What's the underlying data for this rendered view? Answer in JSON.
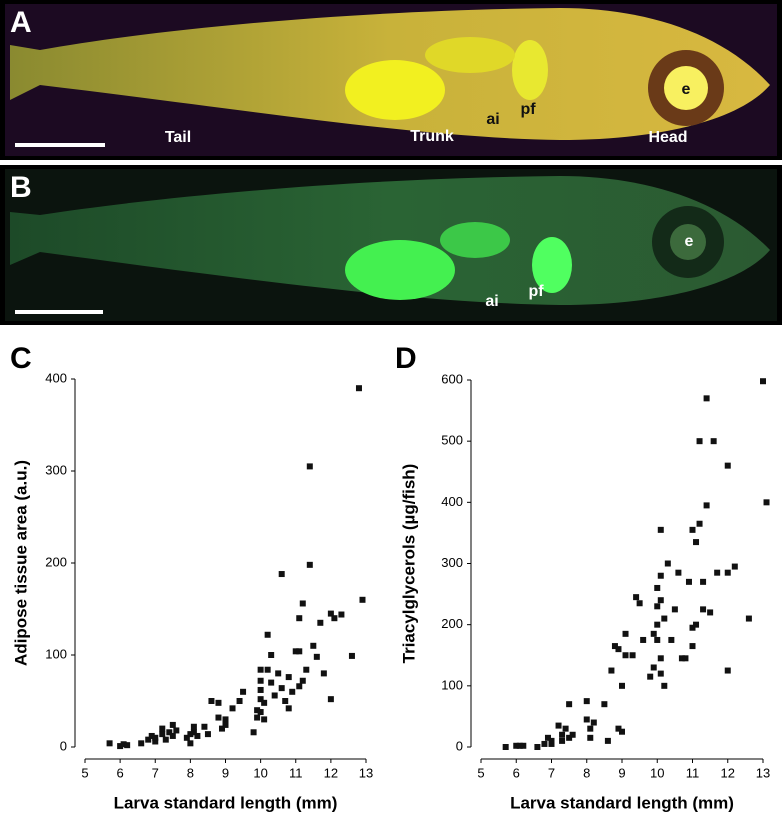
{
  "image_panels": [
    {
      "label": "A",
      "annotations": [
        "Tail",
        "Trunk",
        "ai",
        "pf",
        "Head",
        "e"
      ]
    },
    {
      "label": "B",
      "annotations": [
        "ai",
        "pf",
        "e"
      ]
    }
  ],
  "chart_data": [
    {
      "type": "scatter",
      "panel_label": "C",
      "xlabel": "Larva standard length (mm)",
      "ylabel": "Adipose tissue area (a.u.)",
      "color": "#111111",
      "xlim": [
        5,
        13
      ],
      "ylim": [
        0,
        400
      ],
      "xticks": [
        5,
        6,
        7,
        8,
        9,
        10,
        11,
        12,
        13
      ],
      "yticks": [
        0,
        100,
        200,
        300,
        400
      ],
      "x": [
        5.7,
        6.0,
        6.1,
        6.2,
        6.6,
        6.8,
        6.9,
        7.0,
        7.0,
        7.2,
        7.2,
        7.3,
        7.4,
        7.5,
        7.5,
        7.6,
        7.9,
        8.0,
        8.0,
        8.1,
        8.1,
        8.2,
        8.4,
        8.5,
        8.6,
        8.8,
        8.8,
        8.9,
        9.0,
        9.0,
        9.2,
        9.4,
        9.5,
        9.8,
        9.9,
        9.9,
        10.0,
        10.0,
        10.0,
        10.0,
        10.0,
        10.1,
        10.1,
        10.2,
        10.2,
        10.3,
        10.3,
        10.4,
        10.5,
        10.6,
        10.6,
        10.7,
        10.8,
        10.8,
        10.9,
        11.0,
        11.1,
        11.1,
        11.1,
        11.2,
        11.2,
        11.3,
        11.4,
        11.4,
        11.5,
        11.6,
        11.7,
        11.8,
        12.0,
        12.0,
        12.1,
        12.3,
        12.6,
        12.8,
        12.9
      ],
      "values": [
        4,
        1,
        3,
        2,
        4,
        8,
        12,
        6,
        10,
        14,
        20,
        8,
        16,
        12,
        24,
        18,
        10,
        14,
        4,
        22,
        16,
        12,
        22,
        14,
        50,
        48,
        32,
        20,
        30,
        24,
        42,
        50,
        60,
        16,
        40,
        32,
        84,
        72,
        62,
        52,
        38,
        30,
        48,
        84,
        122,
        100,
        70,
        56,
        80,
        64,
        188,
        50,
        42,
        76,
        60,
        104,
        104,
        140,
        66,
        156,
        72,
        84,
        198,
        305,
        110,
        98,
        135,
        80,
        145,
        52,
        140,
        144,
        99,
        390,
        160
      ]
    },
    {
      "type": "scatter",
      "panel_label": "D",
      "xlabel": "Larva standard length (mm)",
      "ylabel": "Triacylglycerols (µg/fish)",
      "color": "#111111",
      "xlim": [
        5,
        13
      ],
      "ylim": [
        0,
        600
      ],
      "xticks": [
        5,
        6,
        7,
        8,
        9,
        10,
        11,
        12,
        13
      ],
      "yticks": [
        0,
        100,
        200,
        300,
        400,
        500,
        600
      ],
      "x": [
        5.7,
        6.0,
        6.1,
        6.2,
        6.6,
        6.8,
        6.9,
        7.0,
        7.0,
        7.2,
        7.3,
        7.3,
        7.4,
        7.5,
        7.5,
        7.6,
        8.0,
        8.0,
        8.1,
        8.1,
        8.2,
        8.5,
        8.6,
        8.7,
        8.8,
        8.9,
        8.9,
        9.0,
        9.0,
        9.1,
        9.1,
        9.3,
        9.4,
        9.5,
        9.6,
        9.8,
        9.9,
        9.9,
        10.0,
        10.0,
        10.0,
        10.0,
        10.1,
        10.1,
        10.1,
        10.1,
        10.1,
        10.2,
        10.2,
        10.3,
        10.4,
        10.5,
        10.6,
        10.7,
        10.8,
        10.9,
        11.0,
        11.0,
        11.0,
        11.1,
        11.1,
        11.2,
        11.2,
        11.3,
        11.3,
        11.4,
        11.4,
        11.5,
        11.6,
        11.7,
        12.0,
        12.0,
        12.0,
        12.2,
        12.6,
        13.0,
        13.1
      ],
      "values": [
        0,
        2,
        2,
        2,
        0,
        5,
        15,
        5,
        10,
        35,
        20,
        10,
        30,
        70,
        15,
        20,
        45,
        75,
        30,
        15,
        40,
        70,
        10,
        125,
        165,
        160,
        30,
        25,
        100,
        150,
        185,
        150,
        245,
        235,
        175,
        115,
        130,
        185,
        175,
        200,
        230,
        260,
        355,
        280,
        240,
        145,
        120,
        100,
        210,
        300,
        175,
        225,
        285,
        145,
        145,
        270,
        355,
        195,
        165,
        335,
        200,
        365,
        500,
        270,
        225,
        395,
        570,
        220,
        500,
        285,
        125,
        285,
        460,
        295,
        210,
        598,
        400
      ]
    }
  ]
}
